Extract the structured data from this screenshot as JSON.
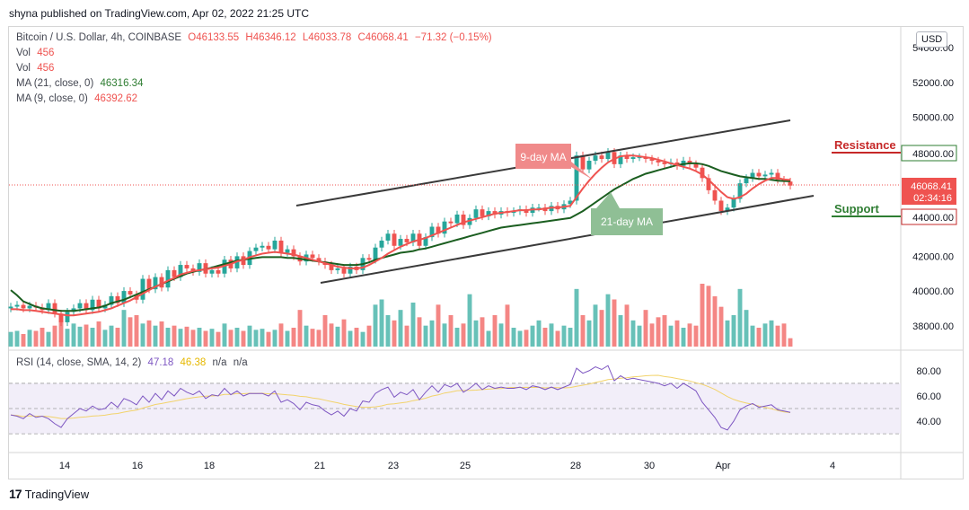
{
  "header": {
    "published": "shyna published on TradingView.com, Apr 02, 2022 21:25 UTC"
  },
  "legend": {
    "symbol": "Bitcoin / U.S. Dollar, 4h, COINBASE",
    "open": "O46133.55",
    "high": "H46346.12",
    "low": "L46033.78",
    "close": "C46068.41",
    "change": "−71.32 (−0.15%)",
    "vol1_label": "Vol",
    "vol1_value": "456",
    "vol2_label": "Vol",
    "vol2_value": "456",
    "ma21_label": "MA (21, close, 0)",
    "ma21_value": "46316.34",
    "ma9_label": "MA (9, close, 0)",
    "ma9_value": "46392.62",
    "rsi_label": "RSI (14, close, SMA, 14, 2)",
    "rsi_value": "47.18",
    "rsi_sma": "46.38",
    "na1": "n/a",
    "na2": "n/a"
  },
  "currency_button": "USD",
  "brand": "TradingView",
  "colors": {
    "up": "#26a69a",
    "down": "#ef5350",
    "ma21": "#1b5e20",
    "ma9": "#ef5350",
    "rsi": "#7e57c2",
    "rsi_sma": "#f2d36b",
    "channel": "#3a3a3a",
    "resistance": "#c62828",
    "support": "#2e7d32"
  },
  "chart_data": {
    "type": "candlestick",
    "title": "Bitcoin / U.S. Dollar, 4h, COINBASE",
    "ylim": [
      36800,
      55200
    ],
    "yticks": [
      "54000.00",
      "52000.00",
      "50000.00",
      "48000.00",
      "44000.00",
      "42000.00",
      "40000.00",
      "38000.00"
    ],
    "xticks": [
      "14",
      "16",
      "18",
      "21",
      "23",
      "25",
      "28",
      "30",
      "Apr",
      "4"
    ],
    "price_tag": "46068.41",
    "countdown": "02:34:16",
    "annotations": {
      "ma9_tag": "9-day MA",
      "ma21_tag": "21-day MA",
      "resistance_label": "Resistance",
      "resistance_value": "48000.00",
      "support_label": "Support",
      "support_value": "44000.00"
    },
    "closes": [
      39100,
      39200,
      39000,
      39150,
      39050,
      38900,
      39300,
      38700,
      38200,
      38800,
      39000,
      39300,
      38900,
      39500,
      39000,
      39200,
      39700,
      39300,
      40000,
      39800,
      39500,
      40700,
      40100,
      40800,
      40200,
      41200,
      40800,
      41500,
      41300,
      41100,
      41600,
      41000,
      41200,
      41000,
      41800,
      41300,
      42000,
      41500,
      42300,
      42500,
      42600,
      42400,
      42900,
      42200,
      42400,
      42000,
      41700,
      42100,
      41900,
      41700,
      41500,
      41200,
      41300,
      41000,
      41400,
      41200,
      41900,
      41800,
      42500,
      42900,
      43300,
      42600,
      43000,
      42800,
      43300,
      42600,
      43100,
      43700,
      43300,
      44000,
      43900,
      44400,
      43800,
      44200,
      44700,
      44300,
      44600,
      44400,
      44600,
      44500,
      44600,
      44700,
      44500,
      44800,
      44800,
      44600,
      44900,
      44700,
      45000,
      45200,
      47800,
      47000,
      47500,
      47800,
      47600,
      48000,
      47300,
      47800,
      47600,
      47700,
      47700,
      47600,
      47500,
      47400,
      47300,
      47400,
      47200,
      47500,
      47300,
      47100,
      46500,
      45800,
      45200,
      44600,
      44800,
      45300,
      46200,
      46500,
      46800,
      46600,
      46700,
      46800,
      46400,
      46300,
      46068
    ],
    "ma21": [
      40050,
      39750,
      39400,
      39250,
      39100,
      39000,
      38950,
      38900,
      38850,
      38850,
      38850,
      38900,
      38950,
      39000,
      39050,
      39150,
      39300,
      39400,
      39500,
      39650,
      39800,
      39950,
      40100,
      40250,
      40400,
      40550,
      40700,
      40850,
      41000,
      41100,
      41200,
      41250,
      41350,
      41450,
      41550,
      41650,
      41750,
      41800,
      41850,
      41900,
      41950,
      41950,
      41950,
      41950,
      41900,
      41900,
      41850,
      41800,
      41750,
      41700,
      41650,
      41600,
      41550,
      41500,
      41500,
      41500,
      41550,
      41650,
      41800,
      41900,
      42000,
      42100,
      42200,
      42250,
      42300,
      42400,
      42450,
      42550,
      42650,
      42750,
      42850,
      42950,
      43050,
      43150,
      43250,
      43350,
      43450,
      43550,
      43650,
      43700,
      43750,
      43800,
      43850,
      43900,
      43950,
      44000,
      44050,
      44100,
      44150,
      44200,
      44400,
      44600,
      44850,
      45100,
      45350,
      45600,
      45850,
      46050,
      46250,
      46450,
      46600,
      46750,
      46850,
      46950,
      47050,
      47150,
      47250,
      47300,
      47350,
      47350,
      47300,
      47200,
      47050,
      46900,
      46800,
      46700,
      46600,
      46550,
      46500,
      46450,
      46450,
      46400,
      46350,
      46330,
      46316
    ],
    "ma9": [
      38950,
      38950,
      38900,
      38900,
      38850,
      38800,
      38750,
      38700,
      38650,
      38600,
      38600,
      38650,
      38700,
      38750,
      38800,
      38900,
      39000,
      39150,
      39300,
      39450,
      39650,
      39850,
      40050,
      40250,
      40400,
      40600,
      40750,
      40950,
      41050,
      41150,
      41200,
      41250,
      41300,
      41350,
      41450,
      41550,
      41700,
      41800,
      41950,
      42050,
      42150,
      42200,
      42250,
      42200,
      42150,
      42100,
      42000,
      41900,
      41800,
      41700,
      41600,
      41500,
      41400,
      41350,
      41300,
      41300,
      41350,
      41500,
      41700,
      41900,
      42150,
      42350,
      42550,
      42700,
      42850,
      42950,
      43050,
      43200,
      43350,
      43500,
      43650,
      43800,
      43950,
      44050,
      44150,
      44250,
      44350,
      44450,
      44500,
      44550,
      44600,
      44650,
      44650,
      44700,
      44700,
      44750,
      44800,
      44800,
      44850,
      44900,
      45400,
      45900,
      46350,
      46750,
      47100,
      47400,
      47600,
      47750,
      47800,
      47800,
      47750,
      47700,
      47650,
      47550,
      47450,
      47350,
      47250,
      47150,
      47050,
      46900,
      46700,
      46400,
      46050,
      45700,
      45400,
      45300,
      45400,
      45600,
      45900,
      46150,
      46350,
      46500,
      46500,
      46420,
      46392
    ],
    "volumes": [
      14,
      15,
      12,
      16,
      15,
      18,
      14,
      20,
      25,
      17,
      22,
      19,
      21,
      18,
      24,
      16,
      20,
      18,
      35,
      28,
      30,
      22,
      25,
      20,
      24,
      18,
      20,
      17,
      19,
      16,
      18,
      15,
      17,
      14,
      22,
      16,
      18,
      15,
      20,
      16,
      17,
      14,
      16,
      22,
      15,
      18,
      35,
      20,
      17,
      16,
      30,
      22,
      19,
      26,
      15,
      18,
      14,
      20,
      40,
      45,
      30,
      25,
      35,
      20,
      42,
      28,
      20,
      25,
      40,
      22,
      30,
      18,
      22,
      50,
      25,
      28,
      15,
      30,
      22,
      40,
      18,
      15,
      16,
      20,
      25,
      18,
      22,
      15,
      20,
      18,
      55,
      30,
      25,
      40,
      35,
      50,
      45,
      30,
      40,
      25,
      20,
      35,
      22,
      28,
      30,
      20,
      25,
      18,
      22,
      20,
      60,
      58,
      48,
      38,
      25,
      30,
      55,
      35,
      20,
      18,
      22,
      25,
      20,
      22,
      8
    ],
    "rsi": [
      45,
      44,
      42,
      46,
      43,
      44,
      42,
      38,
      35,
      42,
      46,
      50,
      48,
      52,
      49,
      50,
      55,
      51,
      58,
      56,
      53,
      60,
      55,
      62,
      57,
      64,
      60,
      66,
      63,
      61,
      64,
      58,
      61,
      60,
      66,
      61,
      64,
      60,
      62,
      62,
      62,
      60,
      64,
      55,
      57,
      54,
      49,
      55,
      53,
      52,
      48,
      45,
      48,
      44,
      50,
      48,
      56,
      55,
      62,
      65,
      67,
      59,
      63,
      61,
      65,
      57,
      63,
      68,
      63,
      69,
      67,
      70,
      63,
      66,
      70,
      65,
      68,
      66,
      67,
      66,
      66,
      67,
      65,
      68,
      67,
      65,
      67,
      65,
      67,
      69,
      82,
      78,
      80,
      83,
      81,
      84,
      72,
      76,
      73,
      74,
      73,
      72,
      71,
      70,
      68,
      70,
      66,
      70,
      67,
      64,
      55,
      49,
      43,
      35,
      33,
      40,
      49,
      52,
      54,
      51,
      52,
      53,
      49,
      48,
      47
    ]
  }
}
